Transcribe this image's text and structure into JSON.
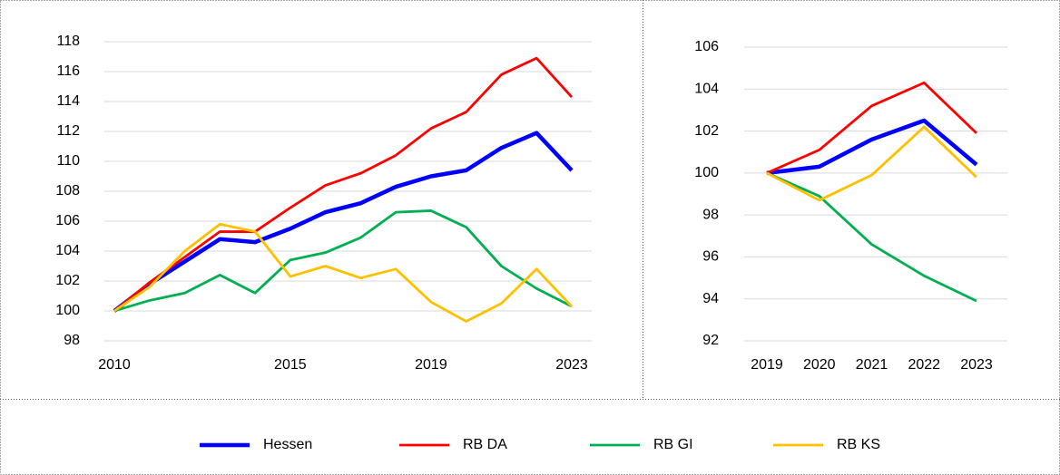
{
  "chart_data": [
    {
      "type": "line",
      "x": [
        2010,
        2011,
        2012,
        2013,
        2014,
        2015,
        2016,
        2017,
        2018,
        2019,
        2020,
        2021,
        2022,
        2023
      ],
      "xlim": [
        2010,
        2023
      ],
      "xticks": [
        2010,
        2015,
        2019,
        2023
      ],
      "ylim": [
        98,
        118
      ],
      "yticks": [
        98,
        100,
        102,
        104,
        106,
        108,
        110,
        112,
        114,
        116,
        118
      ],
      "grid": true,
      "series": [
        {
          "name": "Hessen",
          "color": "#0000ff",
          "values": [
            100,
            101.8,
            103.3,
            104.8,
            104.6,
            105.5,
            106.6,
            107.2,
            108.3,
            109.0,
            109.4,
            110.9,
            111.9,
            109.4
          ]
        },
        {
          "name": "RB DA",
          "color": "#ff0000",
          "values": [
            100,
            101.9,
            103.6,
            105.3,
            105.3,
            106.9,
            108.4,
            109.2,
            110.4,
            112.2,
            113.3,
            115.8,
            116.9,
            114.3
          ]
        },
        {
          "name": "RB GI",
          "color": "#00b050",
          "values": [
            100,
            100.7,
            101.2,
            102.4,
            101.2,
            103.4,
            103.9,
            104.9,
            106.6,
            106.7,
            105.6,
            103.0,
            101.5,
            100.3
          ]
        },
        {
          "name": "RB KS",
          "color": "#ffc000",
          "values": [
            100,
            101.6,
            104.0,
            105.8,
            105.3,
            102.3,
            103.0,
            102.2,
            102.8,
            100.6,
            99.3,
            100.5,
            102.8,
            100.3
          ]
        }
      ]
    },
    {
      "type": "line",
      "categories": [
        "2019",
        "2020",
        "2021",
        "2022",
        "2023"
      ],
      "ylim": [
        92,
        106
      ],
      "yticks": [
        92,
        94,
        96,
        98,
        100,
        102,
        104,
        106
      ],
      "grid": true,
      "series": [
        {
          "name": "Hessen",
          "color": "#0000ff",
          "values": [
            100,
            100.3,
            101.6,
            102.5,
            100.4
          ]
        },
        {
          "name": "RB DA",
          "color": "#ff0000",
          "values": [
            100,
            101.1,
            103.2,
            104.3,
            101.9
          ]
        },
        {
          "name": "RB GI",
          "color": "#00b050",
          "values": [
            100,
            98.9,
            96.6,
            95.1,
            93.9
          ]
        },
        {
          "name": "RB KS",
          "color": "#ffc000",
          "values": [
            100,
            98.7,
            99.9,
            102.2,
            99.8
          ]
        }
      ]
    }
  ]
}
